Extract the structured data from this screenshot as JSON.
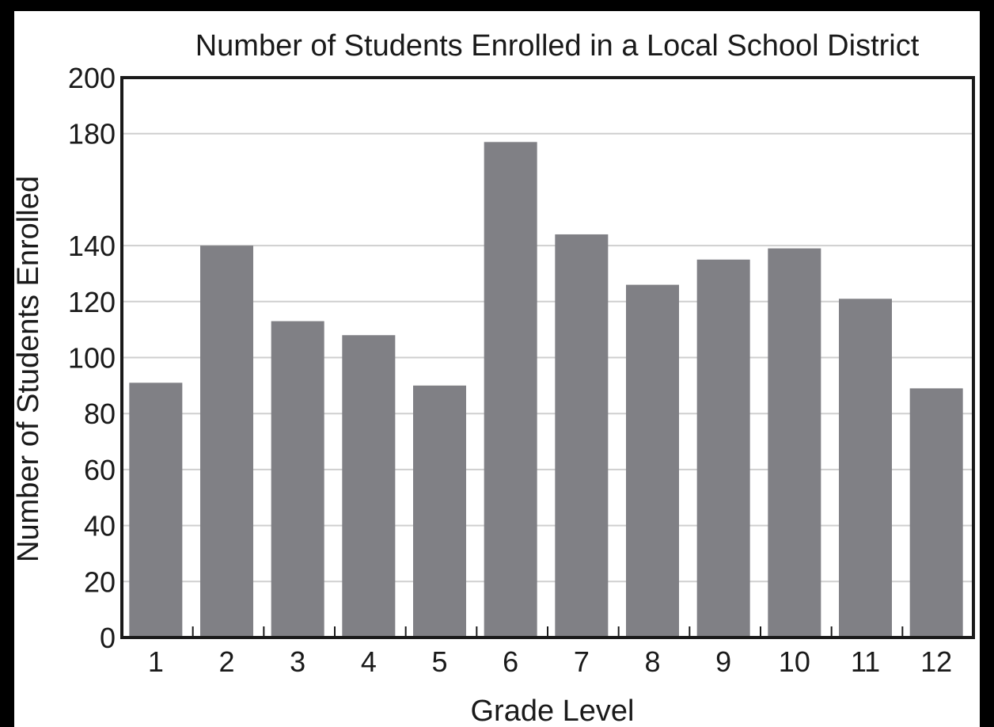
{
  "chart_data": {
    "type": "bar",
    "title": "Number of Students Enrolled in a Local School District",
    "xlabel": "Grade Level",
    "ylabel": "Number of Students Enrolled",
    "categories": [
      "1",
      "2",
      "3",
      "4",
      "5",
      "6",
      "7",
      "8",
      "9",
      "10",
      "11",
      "12"
    ],
    "values": [
      91,
      140,
      113,
      108,
      90,
      177,
      144,
      126,
      135,
      139,
      121,
      89
    ],
    "ylim": [
      0,
      200
    ],
    "yticks": [
      0,
      20,
      40,
      60,
      80,
      100,
      120,
      140,
      180,
      200
    ],
    "grid": true,
    "bar_color": "#808085",
    "grid_color": "#cfcfcf",
    "axis_color": "#1a1a1a"
  }
}
